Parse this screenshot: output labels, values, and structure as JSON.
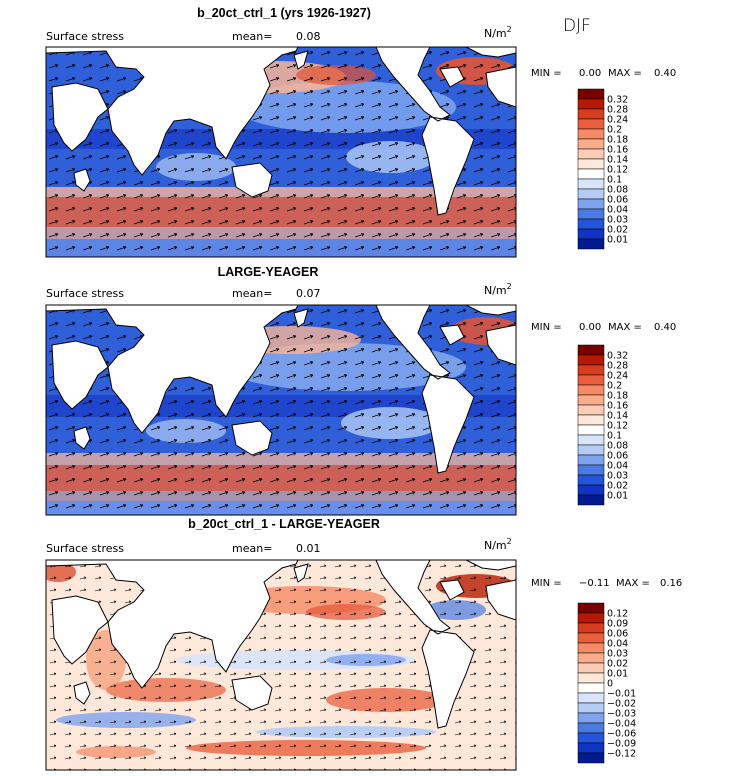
{
  "season": "DJF",
  "chart_data": [
    {
      "type": "heatmap",
      "title": "b_20ct_ctrl_1 (yrs 1926-1927)",
      "field_label": "Surface stress",
      "mean_label": "mean=",
      "mean_value": "0.08",
      "units": "N/m",
      "units_exp": "2",
      "min_label": "MIN =",
      "min_value": "0.00",
      "max_label": "MAX =",
      "max_value": "0.40",
      "colorbar_ticks": [
        "0.32",
        "0.28",
        "0.24",
        "0.2",
        "0.18",
        "0.16",
        "0.14",
        "0.12",
        "0.1",
        "0.08",
        "0.06",
        "0.04",
        "0.03",
        "0.02",
        "0.01"
      ],
      "colorbar_colors": [
        "#7a0000",
        "#b51a00",
        "#d63c1e",
        "#ea5f3c",
        "#f58a64",
        "#f9ad8d",
        "#fcccb4",
        "#fde8da",
        "#ffffff",
        "#d8e4fb",
        "#b4ccf6",
        "#7fa3ee",
        "#4a7ae4",
        "#2553d9",
        "#0f33c4",
        "#031a8f"
      ]
    },
    {
      "type": "heatmap",
      "title": "LARGE-YEAGER",
      "field_label": "Surface stress",
      "mean_label": "mean=",
      "mean_value": "0.07",
      "units": "N/m",
      "units_exp": "2",
      "min_label": "MIN =",
      "min_value": "0.00",
      "max_label": "MAX =",
      "max_value": "0.40",
      "colorbar_ticks": [
        "0.32",
        "0.28",
        "0.24",
        "0.2",
        "0.18",
        "0.16",
        "0.14",
        "0.12",
        "0.1",
        "0.08",
        "0.06",
        "0.04",
        "0.03",
        "0.02",
        "0.01"
      ],
      "colorbar_colors": [
        "#7a0000",
        "#b51a00",
        "#d63c1e",
        "#ea5f3c",
        "#f58a64",
        "#f9ad8d",
        "#fcccb4",
        "#fde8da",
        "#ffffff",
        "#d8e4fb",
        "#b4ccf6",
        "#7fa3ee",
        "#4a7ae4",
        "#2553d9",
        "#0f33c4",
        "#031a8f"
      ]
    },
    {
      "type": "heatmap",
      "title": "b_20ct_ctrl_1 - LARGE-YEAGER",
      "field_label": "Surface stress",
      "mean_label": "mean=",
      "mean_value": "0.01",
      "units": "N/m",
      "units_exp": "2",
      "min_label": "MIN =",
      "min_value": "−0.11",
      "max_label": "MAX =",
      "max_value": "0.16",
      "colorbar_ticks": [
        "0.12",
        "0.09",
        "0.06",
        "0.04",
        "0.03",
        "0.02",
        "0.01",
        "0",
        "−0.01",
        "−0.02",
        "−0.03",
        "−0.04",
        "−0.06",
        "−0.09",
        "−0.12"
      ],
      "colorbar_colors": [
        "#7a0000",
        "#b51a00",
        "#d63c1e",
        "#ea5f3c",
        "#f58a64",
        "#f9ad8d",
        "#fcccb4",
        "#fde8da",
        "#ffffff",
        "#d8e4fb",
        "#b4ccf6",
        "#7fa3ee",
        "#4a7ae4",
        "#2553d9",
        "#0f33c4",
        "#031a8f"
      ]
    }
  ]
}
